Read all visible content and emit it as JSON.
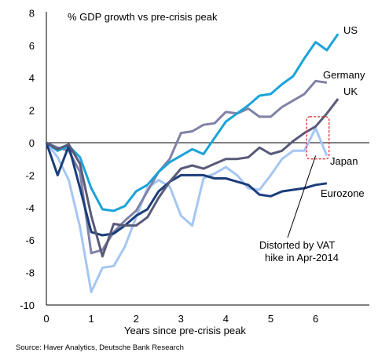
{
  "chart_data": {
    "type": "line",
    "title": "% GDP growth vs pre-crisis peak",
    "xlabel": "Years since pre-crisis peak",
    "ylabel": "",
    "xlim": [
      0,
      6.5
    ],
    "ylim": [
      -10,
      8
    ],
    "xticks": [
      0,
      1,
      2,
      3,
      4,
      5,
      6
    ],
    "yticks": [
      -10,
      -8,
      -6,
      -4,
      -2,
      0,
      2,
      4,
      6,
      8
    ],
    "grid": false,
    "legend": "none (inline labels)",
    "x": [
      0,
      0.25,
      0.5,
      0.75,
      1,
      1.25,
      1.5,
      1.75,
      2,
      2.25,
      2.5,
      2.75,
      3,
      3.25,
      3.5,
      3.75,
      4,
      4.25,
      4.5,
      4.75,
      5,
      5.25,
      5.5,
      5.75,
      6,
      6.25,
      6.5
    ],
    "series": [
      {
        "name": "US",
        "color": "#1aa3d9",
        "values": [
          0,
          -0.5,
          -0.2,
          -0.9,
          -2.8,
          -4.1,
          -4.2,
          -3.9,
          -3.0,
          -2.6,
          -1.8,
          -1.2,
          -0.8,
          -0.4,
          -0.7,
          0.3,
          1.3,
          1.8,
          2.3,
          2.9,
          3.0,
          3.6,
          4.1,
          5.2,
          6.2,
          5.7,
          6.7
        ]
      },
      {
        "name": "Germany",
        "color": "#8082a6",
        "values": [
          0,
          -0.3,
          -0.5,
          -1.8,
          -6.8,
          -6.6,
          -5.5,
          -4.8,
          -4.2,
          -3.0,
          -1.8,
          -1.0,
          0.6,
          0.7,
          1.1,
          1.2,
          1.9,
          1.8,
          2.1,
          1.6,
          1.6,
          2.2,
          2.6,
          3.0,
          3.8,
          3.7,
          null
        ]
      },
      {
        "name": "UK",
        "color": "#585a78",
        "values": [
          0,
          -0.4,
          -0.1,
          -1.3,
          -4.5,
          -7.0,
          -5.0,
          -5.1,
          -5.1,
          -4.6,
          -3.4,
          -2.4,
          -1.6,
          -1.4,
          -1.6,
          -1.3,
          -1.0,
          -1.0,
          -0.9,
          -0.3,
          -0.7,
          -0.5,
          0.1,
          0.6,
          1.0,
          1.8,
          2.7
        ]
      },
      {
        "name": "Japan",
        "color": "#a5c6f3",
        "values": [
          0,
          -0.9,
          -2.3,
          -5.2,
          -9.2,
          -7.7,
          -7.6,
          -6.4,
          -4.6,
          -2.8,
          -2.3,
          -2.7,
          -4.5,
          -5.1,
          -2.2,
          -1.9,
          -1.5,
          -2.0,
          -2.8,
          -2.9,
          -2.0,
          -1.0,
          -0.5,
          -0.5,
          0.9,
          -0.8,
          null
        ]
      },
      {
        "name": "Eurozone",
        "color": "#1c3d7a",
        "values": [
          0,
          -2.0,
          -0.2,
          -2.8,
          -5.5,
          -5.7,
          -5.6,
          -5.1,
          -4.5,
          -4.1,
          -3.0,
          -2.4,
          -2.0,
          -2.0,
          -2.0,
          -2.2,
          -2.2,
          -2.4,
          -2.6,
          -3.2,
          -3.3,
          -3.0,
          -2.9,
          -2.8,
          -2.6,
          -2.5,
          null
        ]
      }
    ],
    "annotation": {
      "text_line1": "Distorted by VAT",
      "text_line2": "hike in Apr-2014",
      "box_color": "#e03030",
      "x_range": [
        5.8,
        6.3
      ],
      "y_range": [
        -1.0,
        1.6
      ],
      "arrow_to": [
        6.0,
        -0.8
      ]
    },
    "source": "Source: Haver Analytics, Deutsche Bank Research"
  }
}
